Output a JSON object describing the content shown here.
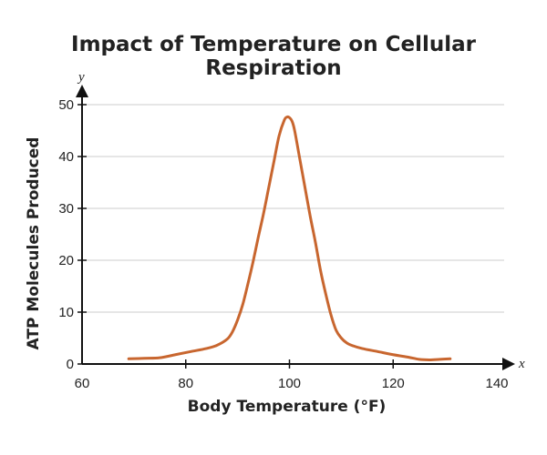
{
  "chart_data": {
    "type": "line",
    "title": "Impact of Temperature on Cellular Respiration",
    "xlabel": "Body Temperature (°F)",
    "ylabel": "ATP Molecules Produced",
    "x_axis_letter": "x",
    "y_axis_letter": "y",
    "xlim": [
      60,
      140
    ],
    "ylim": [
      0,
      50
    ],
    "xticks": [
      60,
      80,
      100,
      120,
      140
    ],
    "yticks": [
      0,
      10,
      20,
      30,
      40,
      50
    ],
    "grid": "horizontal",
    "line_color": "#c8662f",
    "grid_color": "#cccccc",
    "axis_color": "#111111",
    "series": [
      {
        "x": [
          69,
          72,
          75,
          78,
          81,
          84,
          86,
          88,
          89,
          90,
          91,
          92,
          93,
          94,
          95,
          96,
          97,
          98,
          99,
          99.5,
          100,
          100.5,
          101,
          102,
          103,
          104,
          105,
          106,
          107,
          108,
          109,
          110,
          111,
          112,
          114,
          117,
          120,
          123,
          125,
          127,
          129,
          131
        ],
        "y": [
          1,
          1.1,
          1.2,
          1.8,
          2.4,
          3.0,
          3.6,
          4.8,
          6.2,
          8.5,
          11.5,
          15.5,
          19.8,
          24.5,
          29,
          34,
          39,
          44,
          47,
          47.6,
          47.5,
          46.8,
          45,
          39.5,
          34,
          28.5,
          23.5,
          18,
          13.5,
          9.5,
          6.5,
          5,
          4.1,
          3.6,
          3.0,
          2.4,
          1.8,
          1.3,
          0.9,
          0.8,
          0.9,
          1
        ]
      }
    ]
  }
}
